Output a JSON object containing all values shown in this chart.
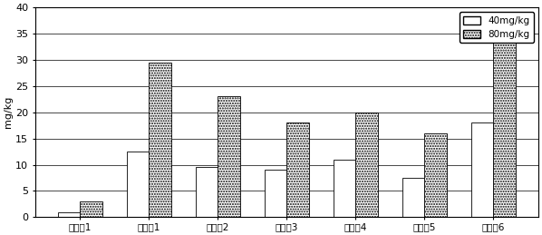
{
  "categories": [
    "实施例1",
    "对比例1",
    "对比例2",
    "对比例3",
    "对比例4",
    "对比例5",
    "对比例6"
  ],
  "values_40": [
    1.0,
    12.5,
    9.5,
    9.0,
    11.0,
    7.5,
    18.0
  ],
  "values_80": [
    3.0,
    29.5,
    23.0,
    18.0,
    20.0,
    16.0,
    34.0
  ],
  "ylabel": "mg/kg",
  "ylim": [
    0,
    40
  ],
  "yticks": [
    0,
    5,
    10,
    15,
    20,
    25,
    30,
    35,
    40
  ],
  "legend_40": "40mg/kg",
  "legend_80": "80mg/kg",
  "bar_width": 0.32,
  "background_color": "#ffffff"
}
